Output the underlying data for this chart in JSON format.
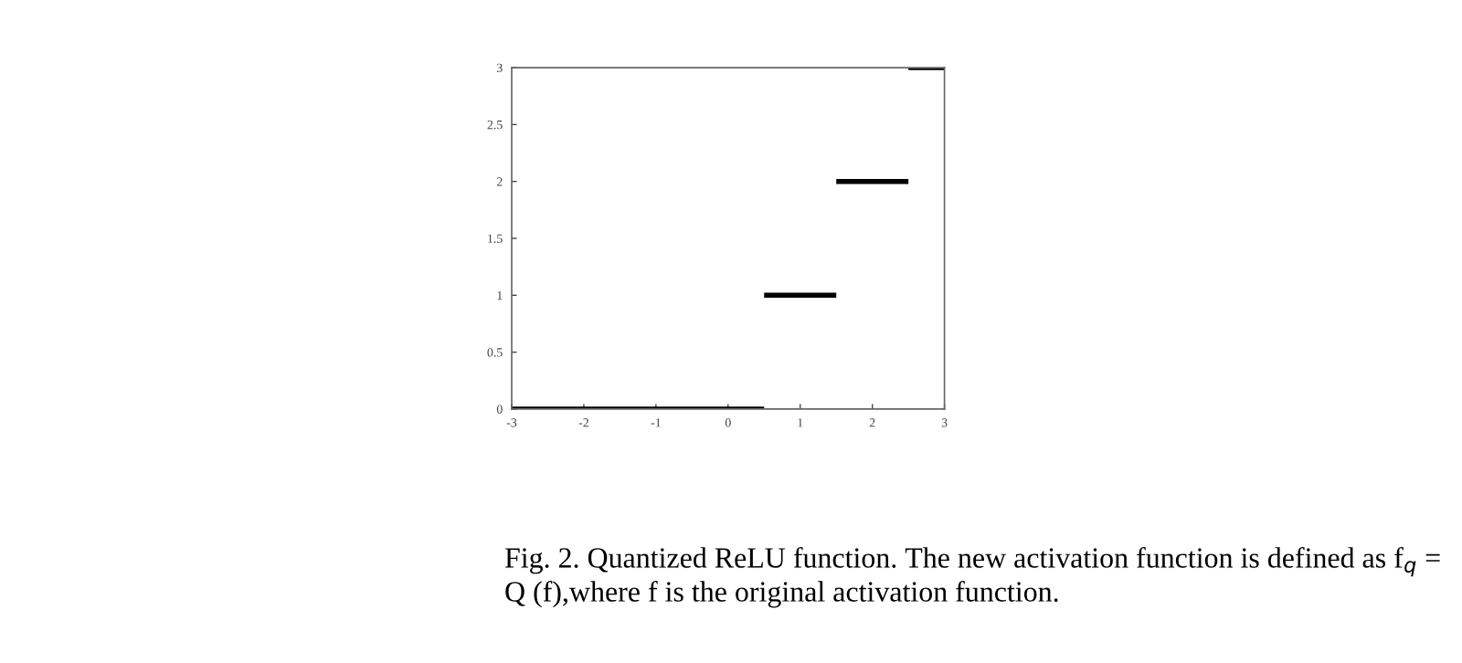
{
  "chart_data": {
    "type": "line",
    "series": [
      {
        "color": "#000000",
        "x": [
          -3,
          0.5
        ],
        "values": [
          0,
          0
        ]
      },
      {
        "color": "#000000",
        "x": [
          0.5,
          1.5
        ],
        "values": [
          1,
          1
        ]
      },
      {
        "color": "#000000",
        "x": [
          1.5,
          2.5
        ],
        "values": [
          2,
          2
        ]
      },
      {
        "color": "#000000",
        "x": [
          2.5,
          3
        ],
        "values": [
          3,
          3
        ]
      }
    ],
    "xlim": [
      -3,
      3
    ],
    "ylim": [
      0,
      3
    ],
    "xticks": [
      -3,
      -2,
      -1,
      0,
      1,
      2,
      3
    ],
    "yticks": [
      0,
      0.5,
      1,
      1.5,
      2,
      2.5,
      3
    ],
    "grid": false,
    "legend": false,
    "marker": "none",
    "line_style": "solid",
    "annotations": [
      "Fig. 2. Quantized ReLU function. The new activation function is defined as f$_{q}$ = Q (f),where f is the original activation function."
    ]
  }
}
